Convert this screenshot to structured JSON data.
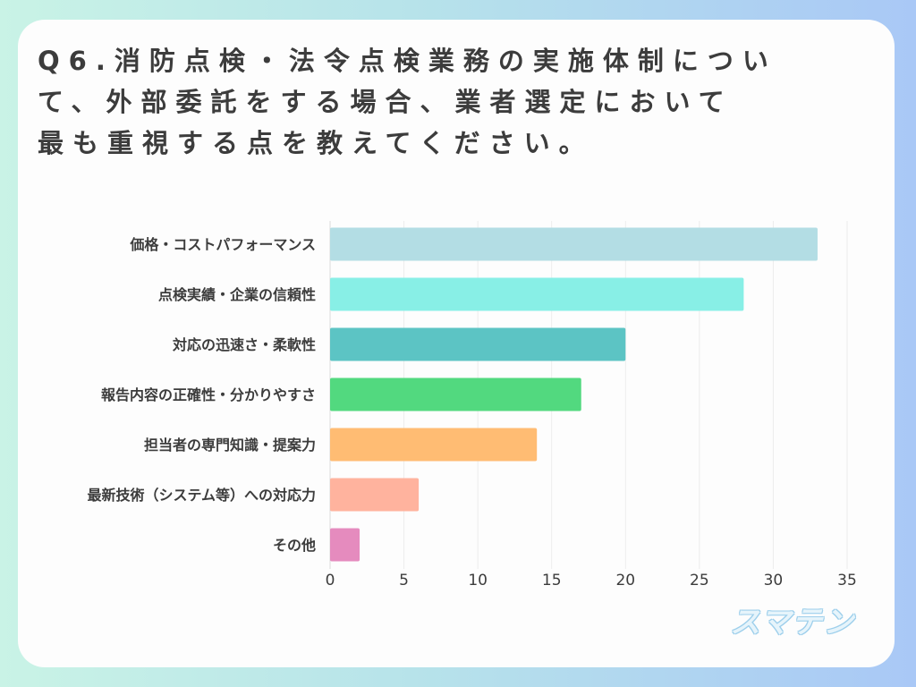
{
  "question": {
    "lines": [
      "Q6.消防点検・法令点検業務の実施体制につい",
      "て、外部委託をする場合、業者選定において",
      "最も重視する点を教えてください。"
    ]
  },
  "logo": {
    "text": "スマテン"
  },
  "chart_data": {
    "type": "bar",
    "orientation": "horizontal",
    "categories": [
      "価格・コストパフォーマンス",
      "点検実績・企業の信頼性",
      "対応の迅速さ・柔軟性",
      "報告内容の正確性・分かりやすさ",
      "担当者の専門知識・提案力",
      "最新技術（システム等）への対応力",
      "その他"
    ],
    "values": [
      33,
      28,
      20,
      17,
      14,
      6,
      2
    ],
    "colors": [
      "#b3dde4",
      "#88efe6",
      "#5cc4c4",
      "#52d97f",
      "#ffbc73",
      "#ffb39e",
      "#e58bbe"
    ],
    "xlim": [
      0,
      35
    ],
    "xticks": [
      0,
      5,
      10,
      15,
      20,
      25,
      30,
      35
    ],
    "xtick_labels": [
      "0",
      "5",
      "10",
      "15",
      "20",
      "25",
      "30",
      "35"
    ],
    "grid": true,
    "legend": false
  }
}
